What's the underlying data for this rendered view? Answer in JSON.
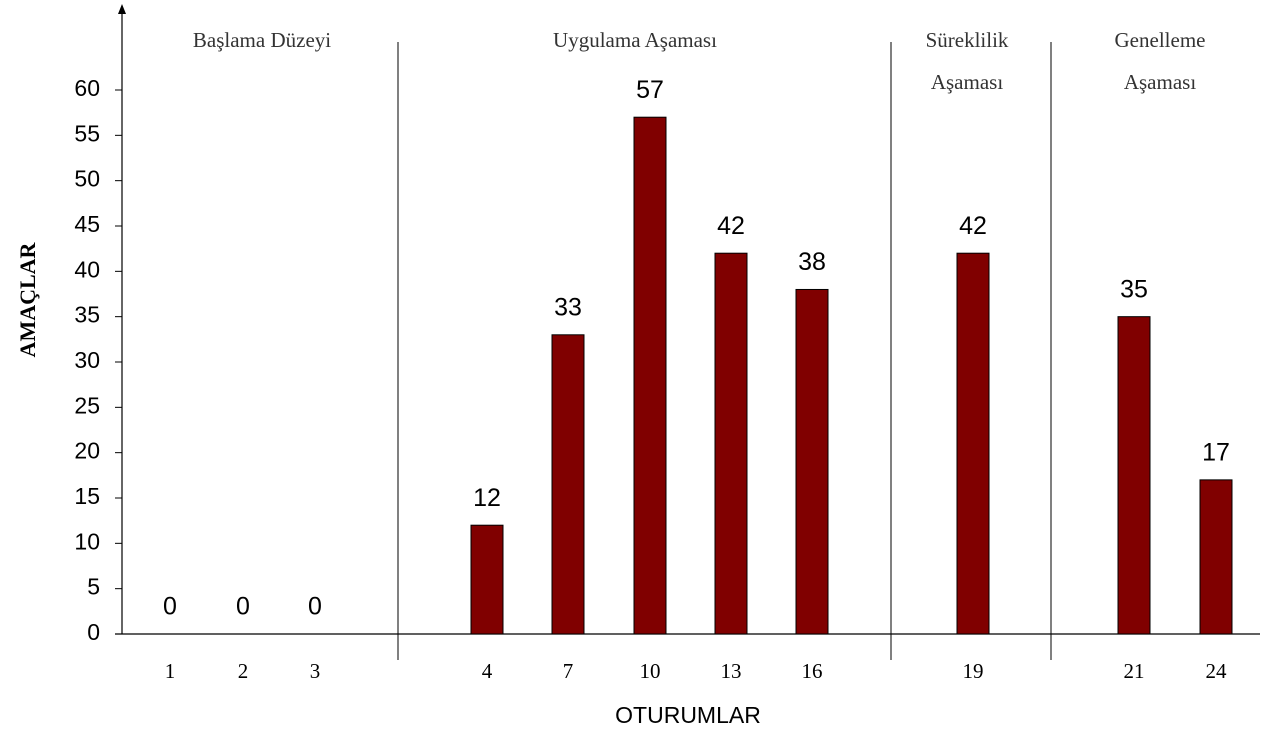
{
  "chart_data": {
    "type": "bar",
    "y_label": "AMAÇLAR",
    "x_label": "OTURUMLAR",
    "groups": [
      {
        "label": [
          "Başlama Düzeyi"
        ],
        "categories": [
          "1",
          "2",
          "3"
        ],
        "values": [
          0,
          0,
          0
        ]
      },
      {
        "label": [
          "Uygulama Aşaması"
        ],
        "categories": [
          "4",
          "7",
          "10",
          "13",
          "16"
        ],
        "values": [
          12,
          33,
          57,
          42,
          38
        ]
      },
      {
        "label": [
          "Süreklilik",
          "Aşaması"
        ],
        "categories": [
          "19"
        ],
        "values": [
          42
        ]
      },
      {
        "label": [
          "Genelleme",
          "Aşaması"
        ],
        "categories": [
          "21",
          "24"
        ],
        "values": [
          35,
          17
        ]
      }
    ],
    "color": "#800000",
    "ylim": [
      0,
      60
    ],
    "yticks": [
      0,
      5,
      10,
      15,
      20,
      25,
      30,
      35,
      40,
      45,
      50,
      55,
      60
    ]
  }
}
